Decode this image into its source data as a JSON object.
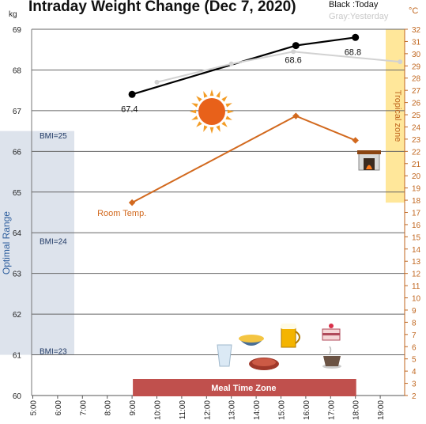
{
  "title": "Intraday Weight Change (Dec 7, 2020)",
  "legend": {
    "today": "Black :Today",
    "yesterday": "Gray:Yesterday"
  },
  "units": {
    "left": "kg",
    "right": "°C"
  },
  "chart_data": {
    "type": "line",
    "x_ticks": [
      "5:00",
      "6:00",
      "7:00",
      "8:00",
      "9:00",
      "10:00",
      "11:00",
      "12:00",
      "13:00",
      "14:00",
      "15:00",
      "16:00",
      "17:00",
      "18:00",
      "19:00"
    ],
    "xlim": [
      5,
      19.8
    ],
    "y_left": {
      "ylim": [
        60,
        69
      ],
      "ticks": [
        60,
        61,
        62,
        63,
        64,
        65,
        66,
        67,
        68,
        69
      ]
    },
    "y_right": {
      "ylim": [
        2,
        32
      ],
      "ticks": [
        2,
        3,
        4,
        5,
        6,
        7,
        8,
        9,
        10,
        11,
        12,
        13,
        14,
        15,
        16,
        17,
        18,
        19,
        20,
        21,
        22,
        23,
        24,
        25,
        26,
        27,
        28,
        29,
        30,
        31,
        32
      ]
    },
    "series": [
      {
        "name": "Today",
        "axis": "left",
        "color": "#000000",
        "points": [
          [
            9.0,
            67.4
          ],
          [
            15.6,
            68.6
          ],
          [
            18.0,
            68.8
          ]
        ],
        "labels": [
          "67.4",
          "68.6",
          "68.8"
        ]
      },
      {
        "name": "Yesterday",
        "axis": "left",
        "color": "#d2d2d2",
        "points": [
          [
            10.0,
            67.7
          ],
          [
            13.0,
            68.15
          ],
          [
            15.5,
            68.45
          ],
          [
            19.8,
            68.2
          ]
        ]
      },
      {
        "name": "Room Temp.",
        "axis": "right",
        "color": "#d2691e",
        "points": [
          [
            9.0,
            17.8
          ],
          [
            15.6,
            24.9
          ],
          [
            18.0,
            22.9
          ]
        ]
      }
    ],
    "bands": {
      "optimal_range": {
        "label": "Optimal Range",
        "y_from": 61.0,
        "y_to": 66.5,
        "bmi_labels": [
          "BMI=25",
          "BMI=24",
          "BMI=23"
        ],
        "bmi_values": [
          66.4,
          63.8,
          61.1
        ]
      },
      "tropical_zone": {
        "label": "Tropical zone",
        "y_from_c": 17.8,
        "y_to_c": 32
      },
      "meal_time_zone": {
        "label": "Meal Time Zone",
        "x_from": 9.0,
        "x_to": 18.0
      }
    },
    "room_temp_label": "Room Temp.",
    "colors": {
      "today": "#000000",
      "yesterday": "#d2d2d2",
      "temp": "#d2691e",
      "optimal": "#dde3ec",
      "tropical": "#ffe79a",
      "meal": "#c0504d"
    }
  }
}
